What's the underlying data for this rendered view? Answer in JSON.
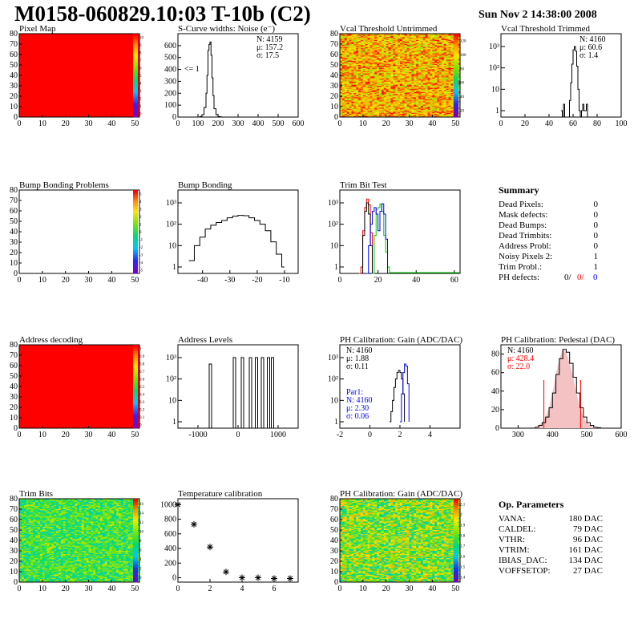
{
  "header": {
    "title": "M0158-060829.10:03 T-10b (C2)",
    "date": "Sun Nov  2 14:38:00 2008"
  },
  "colors": {
    "hist_line": "#000000",
    "red_series": "#ff0000",
    "green_series": "#00cc00",
    "blue_series": "#0000ff",
    "map_full": "#ff0000"
  },
  "chart_data": [
    {
      "id": "pixel_map",
      "type": "heatmap",
      "title": "Pixel Map",
      "x_ticks": [
        "0",
        "10",
        "20",
        "30",
        "40",
        "50"
      ],
      "y_ticks": [
        "0",
        "10",
        "20",
        "30",
        "40",
        "50",
        "60",
        "70",
        "80"
      ],
      "z_ticks": [
        "0",
        "1",
        "2",
        "3",
        "4",
        "5",
        "6",
        "7",
        "8",
        "9",
        "10"
      ],
      "fill": "uniform",
      "value": 10
    },
    {
      "id": "scurve_noise",
      "type": "line",
      "title": "S-Curve widths: Noise (e⁻)",
      "x_ticks": [
        "0",
        "100",
        "200",
        "300",
        "400",
        "500",
        "600"
      ],
      "y_ticks": [
        "0",
        "100",
        "200",
        "300",
        "400",
        "500",
        "600"
      ],
      "stats": [
        "N: 4159",
        "μ: 157.2",
        "σ: 17.5"
      ],
      "annotation": "<= 1",
      "x": [
        100,
        110,
        120,
        130,
        140,
        145,
        150,
        155,
        160,
        165,
        170,
        175,
        180,
        190,
        200,
        210,
        220
      ],
      "y": [
        0,
        5,
        20,
        80,
        200,
        350,
        560,
        610,
        630,
        520,
        330,
        180,
        70,
        20,
        5,
        2,
        0
      ],
      "xlim": [
        0,
        600
      ],
      "ylim": [
        0,
        700
      ]
    },
    {
      "id": "vcal_untrimmed",
      "type": "heatmap",
      "title": "Vcal Threshold Untrimmed",
      "x_ticks": [
        "0",
        "10",
        "20",
        "30",
        "40",
        "50"
      ],
      "y_ticks": [
        "0",
        "10",
        "20",
        "30",
        "40",
        "50",
        "60",
        "70",
        "80"
      ],
      "z_ticks": [
        "20",
        "40",
        "60",
        "80",
        "100",
        "120"
      ],
      "fill": "noisy-warm"
    },
    {
      "id": "vcal_trimmed",
      "type": "line",
      "title": "Vcal Threshold Trimmed",
      "x_ticks": [
        "0",
        "20",
        "40",
        "60",
        "80",
        "100"
      ],
      "y_ticks": [
        "1",
        "10",
        "10²",
        "10³"
      ],
      "stats": [
        "N: 4160",
        "μ: 60.6",
        "σ: 1.4"
      ],
      "x": [
        50,
        51,
        52,
        53,
        54,
        55,
        56,
        57,
        58,
        59,
        60,
        61,
        62,
        63,
        64,
        65,
        66,
        67,
        68,
        69,
        70,
        71,
        72
      ],
      "y": [
        1,
        0.2,
        2,
        0.2,
        0.2,
        0.2,
        0.2,
        3,
        20,
        150,
        700,
        1000,
        600,
        120,
        10,
        1,
        0.2,
        1,
        2,
        1,
        1,
        2,
        0.2
      ],
      "xlim": [
        0,
        100
      ],
      "log_y": true
    },
    {
      "id": "bump_map",
      "type": "heatmap",
      "title": "Bump Bonding Problems",
      "x_ticks": [
        "0",
        "10",
        "20",
        "30",
        "40",
        "50"
      ],
      "y_ticks": [
        "0",
        "10",
        "20",
        "30",
        "40",
        "50",
        "60",
        "70",
        "80"
      ],
      "z_ticks": [
        "-5",
        "-4",
        "-3",
        "-2",
        "-1",
        "0",
        "1",
        "2",
        "3",
        "4",
        "5"
      ],
      "fill": "empty"
    },
    {
      "id": "bump_bonding",
      "type": "line",
      "title": "Bump Bonding",
      "x_ticks": [
        "-40",
        "-30",
        "-20",
        "-10"
      ],
      "y_ticks": [
        "1",
        "10",
        "10²",
        "10³"
      ],
      "x": [
        -45,
        -43,
        -41,
        -39,
        -37,
        -35,
        -33,
        -31,
        -29,
        -27,
        -25,
        -23,
        -21,
        -19,
        -17,
        -15,
        -13,
        -11,
        -10
      ],
      "y": [
        2,
        10,
        25,
        60,
        90,
        120,
        150,
        200,
        240,
        260,
        250,
        200,
        150,
        100,
        50,
        15,
        4,
        1,
        1
      ],
      "xlim": [
        -49,
        -5
      ],
      "log_y": true
    },
    {
      "id": "trim_bit_test",
      "type": "line",
      "title": "Trim Bit Test",
      "x_ticks": [
        "0",
        "20",
        "40",
        "60"
      ],
      "y_ticks": [
        "1",
        "10",
        "10²",
        "10³"
      ],
      "xlim": [
        0,
        63
      ],
      "log_y": true,
      "series": [
        {
          "color": "red",
          "x": [
            10,
            11,
            12,
            13,
            14,
            15,
            16,
            17
          ],
          "y": [
            0.5,
            1,
            50,
            600,
            1500,
            800,
            40,
            0.5
          ]
        },
        {
          "color": "black",
          "x": [
            11,
            12,
            13,
            14,
            15,
            16,
            17
          ],
          "y": [
            0.5,
            30,
            400,
            1000,
            300,
            10,
            0.5
          ]
        },
        {
          "color": "green",
          "x": [
            17,
            18,
            19,
            20,
            21,
            22,
            23,
            24,
            25,
            26
          ],
          "y": [
            0.5,
            30,
            500,
            600,
            900,
            400,
            30,
            5,
            1,
            0.5
          ]
        },
        {
          "color": "blue",
          "x": [
            14,
            15,
            16,
            17,
            18,
            19,
            20,
            21,
            22,
            23,
            24,
            25
          ],
          "y": [
            0.5,
            10,
            100,
            400,
            600,
            300,
            50,
            400,
            900,
            300,
            20,
            0.5
          ]
        }
      ]
    },
    {
      "id": "address_decoding",
      "type": "heatmap",
      "title": "Address decoding",
      "x_ticks": [
        "0",
        "10",
        "20",
        "30",
        "40",
        "50"
      ],
      "y_ticks": [
        "0",
        "10",
        "20",
        "30",
        "40",
        "50",
        "60",
        "70",
        "80"
      ],
      "z_ticks": [
        "0",
        "0.1",
        "0.2",
        "0.3",
        "0.4",
        "0.5",
        "0.6",
        "0.7",
        "0.8",
        "0.9",
        "1"
      ],
      "fill": "uniform",
      "value": 1
    },
    {
      "id": "address_levels",
      "type": "bar",
      "title": "Address Levels",
      "x_ticks": [
        "-1000",
        "0",
        "1000"
      ],
      "y_ticks": [
        "1",
        "10",
        "10²",
        "10³"
      ],
      "xlim": [
        -1500,
        1500
      ],
      "log_y": true,
      "spikes_x": [
        -700,
        -100,
        100,
        300,
        450,
        600,
        750,
        850
      ],
      "spikes_y": [
        500,
        1000,
        1000,
        1000,
        1000,
        1000,
        1000,
        1000
      ]
    },
    {
      "id": "ph_gain",
      "type": "line",
      "title": "PH Calibration: Gain (ADC/DAC)",
      "x_ticks": [
        "-2",
        "0",
        "2",
        "4"
      ],
      "y_ticks": [
        "1",
        "10",
        "10²",
        "10³"
      ],
      "stats": [
        "N: 4160",
        "μ: 1.88",
        "σ: 0.11"
      ],
      "stats2": [
        "Par1:",
        "N: 4160",
        "μ: 2.30",
        "σ: 0.06"
      ],
      "xlim": [
        -2,
        6
      ],
      "log_y": true,
      "series": [
        {
          "color": "black",
          "x": [
            1.3,
            1.4,
            1.5,
            1.6,
            1.7,
            1.8,
            1.9,
            2.0,
            2.1,
            2.2,
            2.3
          ],
          "y": [
            1,
            3,
            10,
            40,
            100,
            200,
            250,
            200,
            100,
            20,
            1
          ]
        },
        {
          "color": "blue",
          "x": [
            2.0,
            2.1,
            2.2,
            2.3,
            2.4,
            2.5,
            2.6
          ],
          "y": [
            1,
            20,
            200,
            500,
            400,
            60,
            1
          ]
        }
      ]
    },
    {
      "id": "ph_pedestal",
      "type": "line",
      "title": "PH Calibration: Pedestal (DAC)",
      "x_ticks": [
        "300",
        "400",
        "500",
        "600"
      ],
      "y_ticks": [
        "0",
        "20",
        "40",
        "60",
        "80"
      ],
      "stats": [
        "N: 4160",
        "μ: 428.4",
        "σ: 22.0"
      ],
      "xlim": [
        250,
        600
      ],
      "ylim": [
        0,
        90
      ],
      "markers_x": [
        375,
        482
      ],
      "x": [
        340,
        350,
        360,
        370,
        380,
        390,
        400,
        410,
        420,
        430,
        440,
        450,
        460,
        470,
        480,
        490,
        500,
        510,
        520,
        530,
        540
      ],
      "y": [
        0,
        1,
        3,
        6,
        12,
        22,
        38,
        58,
        75,
        85,
        82,
        70,
        55,
        38,
        22,
        12,
        6,
        3,
        1,
        0.5,
        0
      ]
    },
    {
      "id": "trim_bits",
      "type": "heatmap",
      "title": "Trim Bits",
      "x_ticks": [
        "0",
        "10",
        "20",
        "30",
        "40",
        "50"
      ],
      "y_ticks": [
        "0",
        "10",
        "20",
        "30",
        "40",
        "50",
        "60",
        "70",
        "80"
      ],
      "z_ticks": [
        "0",
        "2",
        "4",
        "6",
        "8",
        "10",
        "12",
        "14",
        "16"
      ],
      "fill": "noisy-green"
    },
    {
      "id": "temperature_calibration",
      "type": "scatter",
      "title": "Temperature calibration",
      "x_ticks": [
        "0",
        "2",
        "4",
        "6"
      ],
      "y_ticks": [
        "0",
        "200",
        "400",
        "600",
        "800",
        "1000"
      ],
      "xlim": [
        0,
        7.5
      ],
      "ylim": [
        -60,
        1080
      ],
      "x": [
        0,
        1,
        2,
        3,
        4,
        5,
        6,
        7
      ],
      "y": [
        1000,
        730,
        420,
        80,
        0,
        0,
        -10,
        -10
      ]
    },
    {
      "id": "ph_gain_map",
      "type": "heatmap",
      "title": "PH Calibration: Gain (ADC/DAC)",
      "x_ticks": [
        "0",
        "10",
        "20",
        "30",
        "40",
        "50"
      ],
      "y_ticks": [
        "0",
        "10",
        "20",
        "30",
        "40",
        "50",
        "60",
        "70",
        "80"
      ],
      "z_ticks": [
        "1.4",
        "1.5",
        "1.6",
        "1.7",
        "1.8",
        "1.9",
        "2",
        "2.1"
      ],
      "fill": "noisy-mixed"
    }
  ],
  "summary": {
    "title": "Summary",
    "rows": [
      {
        "label": "Dead Pixels:",
        "value": "0"
      },
      {
        "label": "Mask defects:",
        "value": "0"
      },
      {
        "label": "Dead Bumps:",
        "value": "0"
      },
      {
        "label": "Dead Trimbits:",
        "value": "0"
      },
      {
        "label": "Address Probl:",
        "value": "0"
      },
      {
        "label": "Noisy Pixels 2:",
        "value": "1"
      },
      {
        "label": "Trim Probl.:",
        "value": "1"
      }
    ],
    "ph_label": "PH defects:",
    "ph_values": [
      "0/",
      "0/",
      "0"
    ]
  },
  "op_params": {
    "title": "Op. Parameters",
    "rows": [
      {
        "label": "VANA:",
        "value": "180 DAC"
      },
      {
        "label": "CALDEL:",
        "value": "79 DAC"
      },
      {
        "label": "VTHR:",
        "value": "96 DAC"
      },
      {
        "label": "VTRIM:",
        "value": "161 DAC"
      },
      {
        "label": "IBIAS_DAC:",
        "value": "134 DAC"
      },
      {
        "label": "VOFFSETOP:",
        "value": "27 DAC"
      }
    ]
  }
}
